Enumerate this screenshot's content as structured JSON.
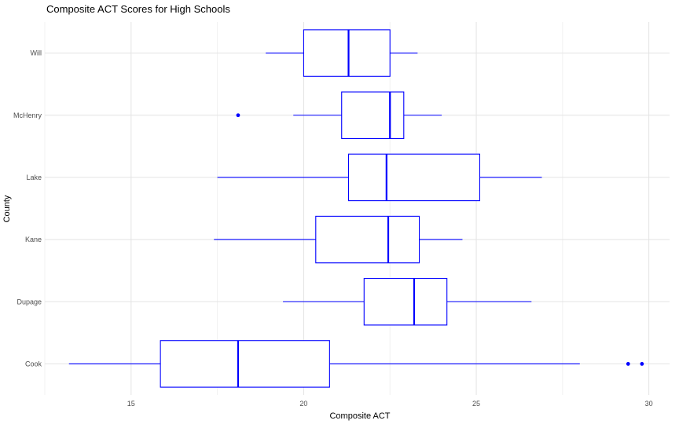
{
  "chart_data": {
    "type": "boxplot",
    "orientation": "horizontal",
    "title": "Composite ACT Scores for High Schools",
    "xlabel": "Composite ACT",
    "ylabel": "County",
    "xlim": [
      12.5,
      30.6
    ],
    "xticks": [
      15,
      20,
      25,
      30
    ],
    "xtick_labels": [
      "15",
      "20",
      "25",
      "30"
    ],
    "grid": true,
    "legend": "none",
    "color": "#0000ff",
    "categories": [
      "Cook",
      "Dupage",
      "Kane",
      "Lake",
      "McHenry",
      "Will"
    ],
    "boxes": [
      {
        "category": "Cook",
        "whisker_low": 13.2,
        "q1": 15.85,
        "median": 18.1,
        "q3": 20.75,
        "whisker_high": 28.0,
        "outliers": [
          29.4,
          29.8
        ]
      },
      {
        "category": "Dupage",
        "whisker_low": 19.4,
        "q1": 21.75,
        "median": 23.2,
        "q3": 24.15,
        "whisker_high": 26.6,
        "outliers": []
      },
      {
        "category": "Kane",
        "whisker_low": 17.4,
        "q1": 20.35,
        "median": 22.45,
        "q3": 23.35,
        "whisker_high": 24.6,
        "outliers": []
      },
      {
        "category": "Lake",
        "whisker_low": 17.5,
        "q1": 21.3,
        "median": 22.4,
        "q3": 25.1,
        "whisker_high": 26.9,
        "outliers": []
      },
      {
        "category": "McHenry",
        "whisker_low": 19.7,
        "q1": 21.1,
        "median": 22.5,
        "q3": 22.9,
        "whisker_high": 24.0,
        "outliers": [
          18.1
        ]
      },
      {
        "category": "Will",
        "whisker_low": 18.9,
        "q1": 20.0,
        "median": 21.3,
        "q3": 22.5,
        "whisker_high": 23.3,
        "outliers": []
      }
    ]
  }
}
